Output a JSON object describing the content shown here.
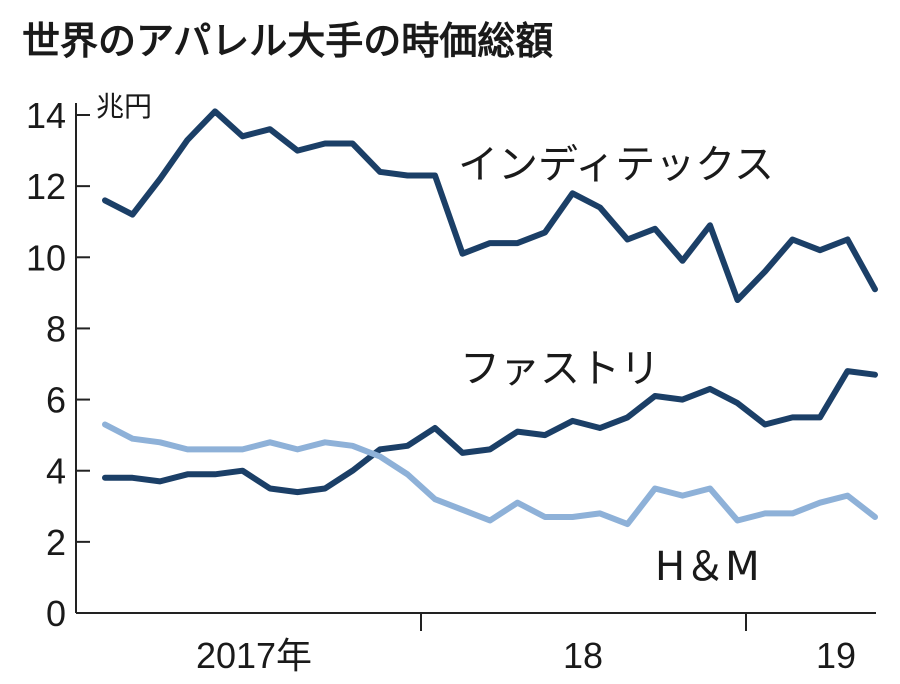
{
  "chart_data": {
    "type": "line",
    "title": "世界のアパレル大手の時価総額",
    "ylabel": "兆円",
    "ylim": [
      0,
      14
    ],
    "yticks": [
      "0",
      "2",
      "4",
      "6",
      "8",
      "10",
      "12",
      "14"
    ],
    "x_period_labels": [
      "2017年",
      "18",
      "19"
    ],
    "grid": false,
    "series": [
      {
        "name": "インディテックス",
        "color": "#1b3f67",
        "values": [
          11.6,
          11.2,
          12.2,
          13.3,
          14.1,
          13.4,
          13.6,
          13.0,
          13.2,
          13.2,
          12.4,
          12.3,
          12.3,
          10.1,
          10.4,
          10.4,
          10.7,
          11.8,
          11.4,
          10.5,
          10.8,
          9.9,
          10.9,
          8.8,
          9.6,
          10.5,
          10.2,
          10.5,
          9.1
        ]
      },
      {
        "name": "ファストリ",
        "color": "#1b3f67",
        "values": [
          3.8,
          3.8,
          3.7,
          3.9,
          3.9,
          4.0,
          3.5,
          3.4,
          3.5,
          4.0,
          4.6,
          4.7,
          5.2,
          4.5,
          4.6,
          5.1,
          5.0,
          5.4,
          5.2,
          5.5,
          6.1,
          6.0,
          6.3,
          5.9,
          5.3,
          5.5,
          5.5,
          6.8,
          6.7
        ]
      },
      {
        "name": "H＆M",
        "color": "#8eb1d8",
        "values": [
          5.3,
          4.9,
          4.8,
          4.6,
          4.6,
          4.6,
          4.8,
          4.6,
          4.8,
          4.7,
          4.4,
          3.9,
          3.2,
          2.9,
          2.6,
          3.1,
          2.7,
          2.7,
          2.8,
          2.5,
          3.5,
          3.3,
          3.5,
          2.6,
          2.8,
          2.8,
          3.1,
          3.3,
          2.7
        ]
      }
    ]
  }
}
